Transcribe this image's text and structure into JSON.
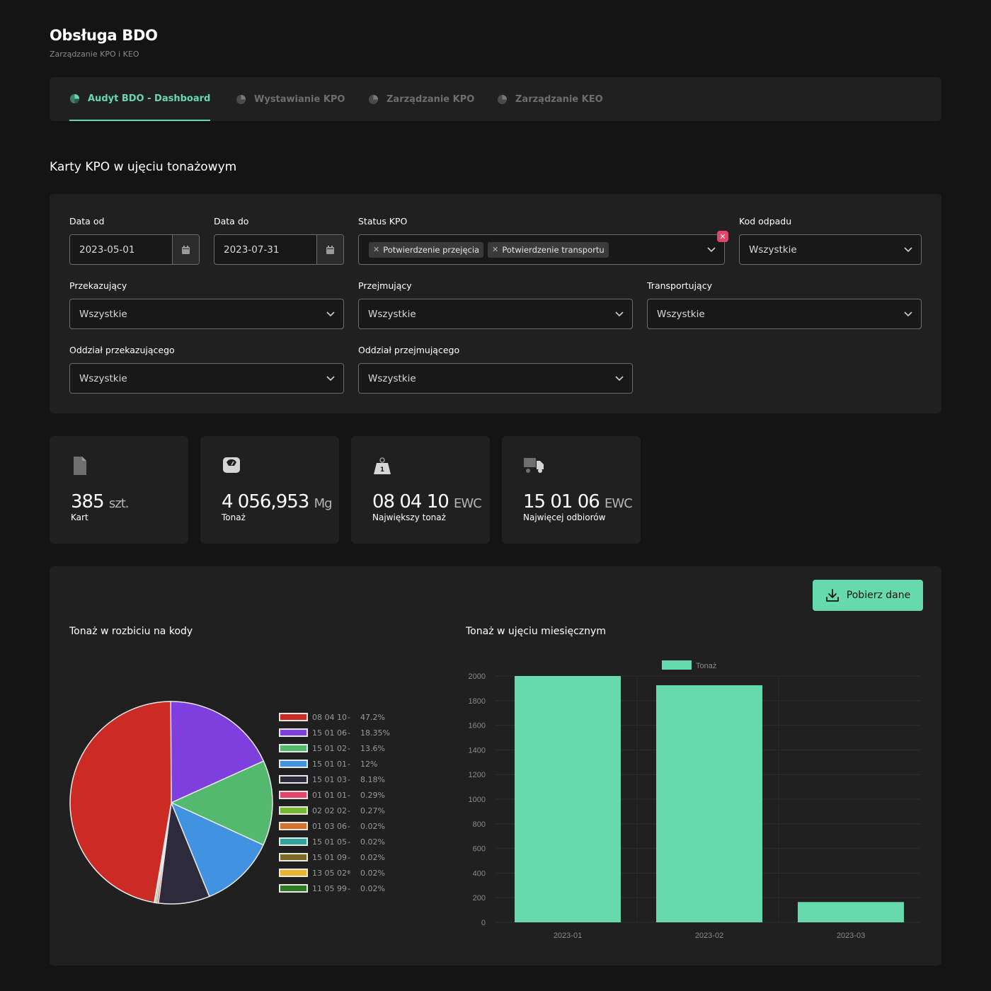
{
  "app": {
    "title": "Obsługa BDO",
    "subtitle": "Zarządzanie KPO i KEO"
  },
  "tabs": [
    {
      "label": "Audyt BDO - Dashboard",
      "active": true
    },
    {
      "label": "Wystawianie KPO",
      "active": false
    },
    {
      "label": "Zarządzanie KPO",
      "active": false
    },
    {
      "label": "Zarządzanie KEO",
      "active": false
    }
  ],
  "section_title": "Karty KPO w ujęciu tonażowym",
  "filters": {
    "date_from": {
      "label": "Data od",
      "value": "2023-05-01"
    },
    "date_to": {
      "label": "Data do",
      "value": "2023-07-31"
    },
    "status": {
      "label": "Status KPO",
      "chips": [
        "Potwierdzenie przejęcia",
        "Potwierdzenie transportu"
      ]
    },
    "waste_code": {
      "label": "Kod odpadu",
      "value": "Wszystkie"
    },
    "sender": {
      "label": "Przekazujący",
      "value": "Wszystkie"
    },
    "receiver": {
      "label": "Przejmujący",
      "value": "Wszystkie"
    },
    "carrier": {
      "label": "Transportujący",
      "value": "Wszystkie"
    },
    "sender_branch": {
      "label": "Oddział przekazującego",
      "value": "Wszystkie"
    },
    "receiver_branch": {
      "label": "Oddział przejmującego",
      "value": "Wszystkie"
    }
  },
  "stats": [
    {
      "icon": "document-icon",
      "value": "385",
      "unit": "szt.",
      "label": "Kart"
    },
    {
      "icon": "scale-icon",
      "value": "4 056,953",
      "unit": "Mg",
      "label": "Tonaż"
    },
    {
      "icon": "weight-icon",
      "value": "08 04 10",
      "unit": "EWC",
      "label": "Największy tonaż"
    },
    {
      "icon": "truck-icon",
      "value": "15 01 06",
      "unit": "EWC",
      "label": "Najwięcej odbiorów"
    }
  ],
  "download_button": "Pobierz dane",
  "pie_title": "Tonaż w rozbiciu na kody",
  "bar_title": "Tonaż w ujęciu miesięcznym",
  "colors": {
    "accent": "#66d9ad",
    "background": "#141414",
    "panel": "#202020"
  },
  "chart_data": [
    {
      "type": "pie",
      "title": "",
      "slices": [
        {
          "label": "08 04 10",
          "pct": "47.2%",
          "value": 47.2,
          "color": "#cc2a24"
        },
        {
          "label": "15 01 06",
          "pct": "18.35%",
          "value": 18.35,
          "color": "#7f3fde"
        },
        {
          "label": "15 01 02",
          "pct": "13.6%",
          "value": 13.6,
          "color": "#52b96e"
        },
        {
          "label": "15 01 01",
          "pct": "12%",
          "value": 12,
          "color": "#4192e0"
        },
        {
          "label": "15 01 03",
          "pct": "8.18%",
          "value": 8.18,
          "color": "#2d2a3b"
        },
        {
          "label": "01 01 01",
          "pct": "0.29%",
          "value": 0.29,
          "color": "#e2456a"
        },
        {
          "label": "02 02 02",
          "pct": "0.27%",
          "value": 0.27,
          "color": "#74b82d"
        },
        {
          "label": "01 03 06",
          "pct": "0.02%",
          "value": 0.02,
          "color": "#d86f2a"
        },
        {
          "label": "15 01 05",
          "pct": "0.02%",
          "value": 0.02,
          "color": "#2fa39a"
        },
        {
          "label": "15 01 09",
          "pct": "0.02%",
          "value": 0.02,
          "color": "#7a6a22"
        },
        {
          "label": "13 05 02*",
          "pct": "0.02%",
          "value": 0.02,
          "color": "#e8b52a"
        },
        {
          "label": "11 05 99",
          "pct": "0.02%",
          "value": 0.02,
          "color": "#2e7a24"
        }
      ]
    },
    {
      "type": "bar",
      "title": "",
      "categories": [
        "2023-01",
        "2023-02",
        "2023-03"
      ],
      "series": [
        {
          "name": "Tonaż",
          "values": [
            2000,
            1925,
            165
          ],
          "color": "#66d9ad"
        }
      ],
      "ylim": [
        0,
        2000
      ],
      "yticks": [
        "0",
        "200",
        "400",
        "600",
        "800",
        "1000",
        "1200",
        "1400",
        "1600",
        "1800",
        "2000"
      ],
      "legend": "top",
      "grid": true
    }
  ]
}
